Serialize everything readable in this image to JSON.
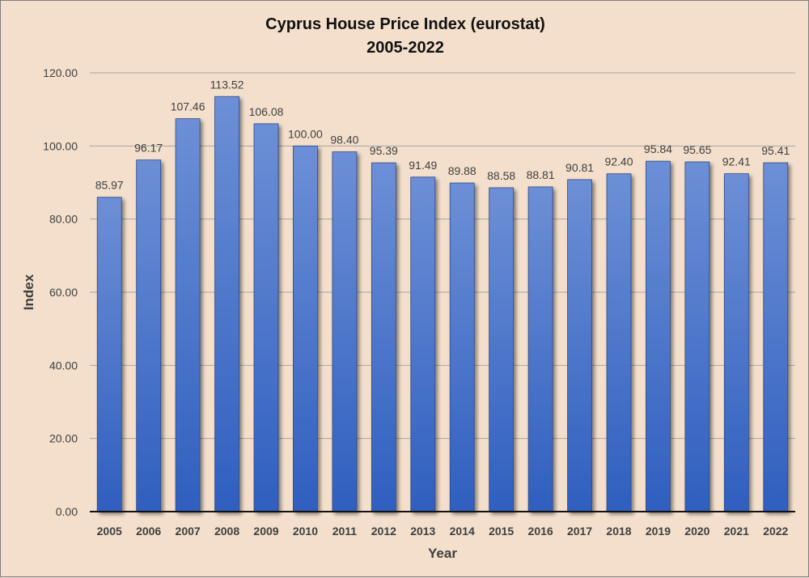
{
  "chart_data": {
    "type": "bar",
    "title": "Cyprus House Price Index (eurostat)",
    "subtitle": "2005-2022",
    "xlabel": "Year",
    "ylabel": "Index",
    "ylim": [
      0,
      120
    ],
    "yticks": [
      "0.00",
      "20.00",
      "40.00",
      "60.00",
      "80.00",
      "100.00",
      "120.00"
    ],
    "categories": [
      "2005",
      "2006",
      "2007",
      "2008",
      "2009",
      "2010",
      "2011",
      "2012",
      "2013",
      "2014",
      "2015",
      "2016",
      "2017",
      "2018",
      "2019",
      "2020",
      "2021",
      "2022"
    ],
    "values": [
      85.97,
      96.17,
      107.46,
      113.52,
      106.08,
      100.0,
      98.4,
      95.39,
      91.49,
      89.88,
      88.58,
      88.81,
      90.81,
      92.4,
      95.84,
      95.65,
      92.41,
      95.41
    ],
    "value_labels": [
      "85.97",
      "96.17",
      "107.46",
      "113.52",
      "106.08",
      "100.00",
      "98.40",
      "95.39",
      "91.49",
      "89.88",
      "88.58",
      "88.81",
      "90.81",
      "92.40",
      "95.84",
      "95.65",
      "92.41",
      "95.41"
    ],
    "grid": true,
    "legend": "none",
    "colors": {
      "bar_top": "#6d8fd6",
      "bar_bottom": "#2f5fbf",
      "background": "#f3dfcb"
    }
  }
}
